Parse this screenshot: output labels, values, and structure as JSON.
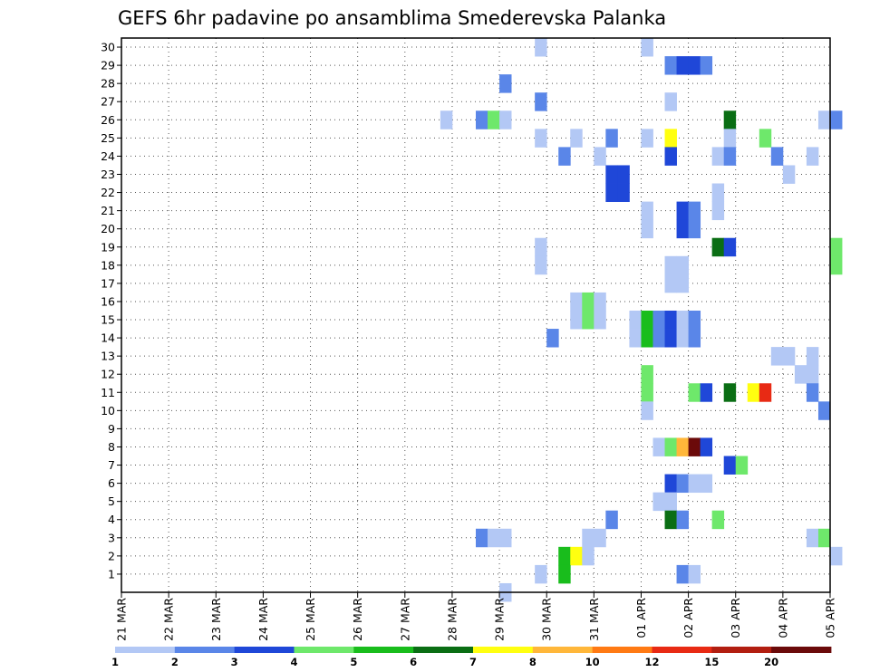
{
  "chart_data": {
    "type": "heatmap",
    "title": "GEFS 6hr padavine po ansamblima Smederevska Palanka",
    "xlabel": "",
    "ylabel": "",
    "x_ticks": [
      "21 MAR",
      "22 MAR",
      "23 MAR",
      "24 MAR",
      "25 MAR",
      "26 MAR",
      "27 MAR",
      "28 MAR",
      "29 MAR",
      "30 MAR",
      "31 MAR",
      "01 APR",
      "02 APR",
      "03 APR",
      "04 APR",
      "05 APR"
    ],
    "x_range": [
      "21 MAR 00z",
      "05 APR 00z"
    ],
    "x_step": "6hr",
    "y_ticks": [
      1,
      2,
      3,
      4,
      5,
      6,
      7,
      8,
      9,
      10,
      11,
      12,
      13,
      14,
      15,
      16,
      17,
      18,
      19,
      20,
      21,
      22,
      23,
      24,
      25,
      26,
      27,
      28,
      29,
      30
    ],
    "ylim": [
      0,
      30
    ],
    "grid": true,
    "legend": {
      "placement": "bottom",
      "levels": [
        1,
        2,
        3,
        4,
        5,
        6,
        7,
        8,
        10,
        12,
        15,
        20
      ],
      "colors": [
        "#b3c8f5",
        "#5a86e8",
        "#1f47d8",
        "#6ee86b",
        "#19bd1c",
        "#0a6e14",
        "#ffff10",
        "#ffb73a",
        "#ff7a14",
        "#e82a14",
        "#b21e10",
        "#6b0a0a"
      ]
    },
    "cells": [
      {
        "member": 30,
        "x": "29 MAR 18z",
        "bin": 0
      },
      {
        "member": 30,
        "x": "01 APR 00z",
        "bin": 0
      },
      {
        "member": 29,
        "x": "01 APR 12z",
        "bin": 1
      },
      {
        "member": 29,
        "x": "01 APR 18z",
        "bin": 2
      },
      {
        "member": 29,
        "x": "02 APR 00z",
        "bin": 2
      },
      {
        "member": 29,
        "x": "02 APR 06z",
        "bin": 1
      },
      {
        "member": 28,
        "x": "29 MAR 00z",
        "bin": 1
      },
      {
        "member": 27,
        "x": "29 MAR 18z",
        "bin": 1
      },
      {
        "member": 27,
        "x": "01 APR 12z",
        "bin": 0
      },
      {
        "member": 26,
        "x": "27 MAR 18z",
        "bin": 0
      },
      {
        "member": 26,
        "x": "28 MAR 12z",
        "bin": 1
      },
      {
        "member": 26,
        "x": "28 MAR 18z",
        "bin": 3
      },
      {
        "member": 26,
        "x": "29 MAR 00z",
        "bin": 0
      },
      {
        "member": 26,
        "x": "02 APR 18z",
        "bin": 5
      },
      {
        "member": 26,
        "x": "04 APR 18z",
        "bin": 0
      },
      {
        "member": 26,
        "x": "05 APR 00z",
        "bin": 1
      },
      {
        "member": 25,
        "x": "29 MAR 18z",
        "bin": 0
      },
      {
        "member": 25,
        "x": "30 MAR 12z",
        "bin": 0
      },
      {
        "member": 25,
        "x": "31 MAR 06z",
        "bin": 1
      },
      {
        "member": 25,
        "x": "01 APR 00z",
        "bin": 0
      },
      {
        "member": 25,
        "x": "01 APR 12z",
        "bin": 6
      },
      {
        "member": 25,
        "x": "02 APR 18z",
        "bin": 0
      },
      {
        "member": 25,
        "x": "03 APR 12z",
        "bin": 3
      },
      {
        "member": 24,
        "x": "30 MAR 06z",
        "bin": 1
      },
      {
        "member": 24,
        "x": "31 MAR 00z",
        "bin": 0
      },
      {
        "member": 24,
        "x": "01 APR 12z",
        "bin": 2
      },
      {
        "member": 24,
        "x": "02 APR 12z",
        "bin": 0
      },
      {
        "member": 24,
        "x": "02 APR 18z",
        "bin": 1
      },
      {
        "member": 24,
        "x": "03 APR 18z",
        "bin": 1
      },
      {
        "member": 24,
        "x": "04 APR 12z",
        "bin": 0
      },
      {
        "member": 23,
        "x": "31 MAR 06z",
        "bin": 2
      },
      {
        "member": 23,
        "x": "31 MAR 12z",
        "bin": 2
      },
      {
        "member": 23,
        "x": "04 APR 00z",
        "bin": 0
      },
      {
        "member": 22,
        "x": "31 MAR 06z",
        "bin": 2
      },
      {
        "member": 22,
        "x": "31 MAR 12z",
        "bin": 2
      },
      {
        "member": 22,
        "x": "02 APR 12z",
        "bin": 0
      },
      {
        "member": 21,
        "x": "02 APR 12z",
        "bin": 0
      },
      {
        "member": 21,
        "x": "01 APR 00z",
        "bin": 0
      },
      {
        "member": 21,
        "x": "01 APR 18z",
        "bin": 2
      },
      {
        "member": 21,
        "x": "02 APR 00z",
        "bin": 1
      },
      {
        "member": 20,
        "x": "01 APR 00z",
        "bin": 0
      },
      {
        "member": 20,
        "x": "01 APR 18z",
        "bin": 2
      },
      {
        "member": 20,
        "x": "02 APR 00z",
        "bin": 1
      },
      {
        "member": 19,
        "x": "29 MAR 18z",
        "bin": 0
      },
      {
        "member": 19,
        "x": "02 APR 12z",
        "bin": 5
      },
      {
        "member": 19,
        "x": "02 APR 18z",
        "bin": 2
      },
      {
        "member": 19,
        "x": "05 APR 00z",
        "bin": 3
      },
      {
        "member": 18,
        "x": "29 MAR 18z",
        "bin": 0
      },
      {
        "member": 18,
        "x": "01 APR 12z",
        "bin": 0
      },
      {
        "member": 18,
        "x": "01 APR 18z",
        "bin": 0
      },
      {
        "member": 18,
        "x": "05 APR 00z",
        "bin": 3
      },
      {
        "member": 17,
        "x": "01 APR 12z",
        "bin": 0
      },
      {
        "member": 17,
        "x": "01 APR 18z",
        "bin": 0
      },
      {
        "member": 16,
        "x": "30 MAR 12z",
        "bin": 0
      },
      {
        "member": 16,
        "x": "30 MAR 18z",
        "bin": 3
      },
      {
        "member": 16,
        "x": "31 MAR 00z",
        "bin": 0
      },
      {
        "member": 15,
        "x": "30 MAR 12z",
        "bin": 0
      },
      {
        "member": 15,
        "x": "30 MAR 18z",
        "bin": 3
      },
      {
        "member": 15,
        "x": "31 MAR 00z",
        "bin": 0
      },
      {
        "member": 15,
        "x": "31 MAR 18z",
        "bin": 0
      },
      {
        "member": 15,
        "x": "01 APR 00z",
        "bin": 4
      },
      {
        "member": 15,
        "x": "01 APR 06z",
        "bin": 1
      },
      {
        "member": 15,
        "x": "01 APR 12z",
        "bin": 2
      },
      {
        "member": 15,
        "x": "01 APR 18z",
        "bin": 0
      },
      {
        "member": 15,
        "x": "02 APR 00z",
        "bin": 1
      },
      {
        "member": 14,
        "x": "30 MAR 00z",
        "bin": 1
      },
      {
        "member": 14,
        "x": "31 MAR 18z",
        "bin": 0
      },
      {
        "member": 14,
        "x": "01 APR 00z",
        "bin": 4
      },
      {
        "member": 14,
        "x": "01 APR 06z",
        "bin": 1
      },
      {
        "member": 14,
        "x": "01 APR 12z",
        "bin": 2
      },
      {
        "member": 14,
        "x": "01 APR 18z",
        "bin": 0
      },
      {
        "member": 14,
        "x": "02 APR 00z",
        "bin": 1
      },
      {
        "member": 13,
        "x": "03 APR 18z",
        "bin": 0
      },
      {
        "member": 13,
        "x": "04 APR 00z",
        "bin": 0
      },
      {
        "member": 13,
        "x": "04 APR 12z",
        "bin": 0
      },
      {
        "member": 12,
        "x": "01 APR 00z",
        "bin": 3
      },
      {
        "member": 12,
        "x": "04 APR 06z",
        "bin": 0
      },
      {
        "member": 12,
        "x": "04 APR 12z",
        "bin": 0
      },
      {
        "member": 11,
        "x": "01 APR 00z",
        "bin": 3
      },
      {
        "member": 11,
        "x": "02 APR 00z",
        "bin": 3
      },
      {
        "member": 11,
        "x": "02 APR 06z",
        "bin": 2
      },
      {
        "member": 11,
        "x": "02 APR 18z",
        "bin": 5
      },
      {
        "member": 11,
        "x": "03 APR 06z",
        "bin": 6
      },
      {
        "member": 11,
        "x": "03 APR 12z",
        "bin": 9
      },
      {
        "member": 11,
        "x": "04 APR 12z",
        "bin": 1
      },
      {
        "member": 10,
        "x": "01 APR 00z",
        "bin": 0
      },
      {
        "member": 10,
        "x": "04 APR 18z",
        "bin": 1
      },
      {
        "member": 8,
        "x": "01 APR 06z",
        "bin": 0
      },
      {
        "member": 8,
        "x": "01 APR 12z",
        "bin": 3
      },
      {
        "member": 8,
        "x": "01 APR 18z",
        "bin": 7
      },
      {
        "member": 8,
        "x": "02 APR 00z",
        "bin": 11
      },
      {
        "member": 8,
        "x": "02 APR 06z",
        "bin": 2
      },
      {
        "member": 7,
        "x": "02 APR 18z",
        "bin": 2
      },
      {
        "member": 7,
        "x": "03 APR 00z",
        "bin": 3
      },
      {
        "member": 6,
        "x": "01 APR 12z",
        "bin": 2
      },
      {
        "member": 6,
        "x": "01 APR 18z",
        "bin": 1
      },
      {
        "member": 6,
        "x": "02 APR 00z",
        "bin": 0
      },
      {
        "member": 6,
        "x": "02 APR 06z",
        "bin": 0
      },
      {
        "member": 5,
        "x": "01 APR 06z",
        "bin": 0
      },
      {
        "member": 5,
        "x": "01 APR 12z",
        "bin": 0
      },
      {
        "member": 4,
        "x": "31 MAR 06z",
        "bin": 1
      },
      {
        "member": 4,
        "x": "01 APR 12z",
        "bin": 5
      },
      {
        "member": 4,
        "x": "01 APR 18z",
        "bin": 1
      },
      {
        "member": 4,
        "x": "02 APR 12z",
        "bin": 3
      },
      {
        "member": 3,
        "x": "28 MAR 12z",
        "bin": 1
      },
      {
        "member": 3,
        "x": "28 MAR 18z",
        "bin": 0
      },
      {
        "member": 3,
        "x": "29 MAR 00z",
        "bin": 0
      },
      {
        "member": 3,
        "x": "30 MAR 18z",
        "bin": 0
      },
      {
        "member": 3,
        "x": "31 MAR 00z",
        "bin": 0
      },
      {
        "member": 3,
        "x": "04 APR 12z",
        "bin": 0
      },
      {
        "member": 3,
        "x": "04 APR 18z",
        "bin": 3
      },
      {
        "member": 2,
        "x": "30 MAR 06z",
        "bin": 4
      },
      {
        "member": 2,
        "x": "30 MAR 12z",
        "bin": 6
      },
      {
        "member": 2,
        "x": "30 MAR 18z",
        "bin": 0
      },
      {
        "member": 2,
        "x": "05 APR 00z",
        "bin": 0
      },
      {
        "member": 1,
        "x": "29 MAR 18z",
        "bin": 0
      },
      {
        "member": 1,
        "x": "30 MAR 06z",
        "bin": 4
      },
      {
        "member": 1,
        "x": "01 APR 18z",
        "bin": 1
      },
      {
        "member": 1,
        "x": "02 APR 00z",
        "bin": 0
      },
      {
        "member": 0,
        "x": "29 MAR 00z",
        "bin": 0
      }
    ]
  }
}
